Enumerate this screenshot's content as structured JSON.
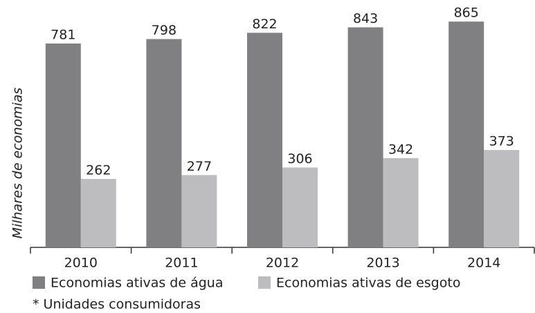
{
  "chart_data": {
    "type": "bar",
    "y_label": "Milhares de economias",
    "note": "* Unidades consumidoras",
    "categories": [
      "2010",
      "2011",
      "2012",
      "2013",
      "2014"
    ],
    "series": [
      {
        "name": "Economias ativas de água",
        "color": "#808083",
        "values": [
          781,
          798,
          822,
          843,
          865
        ]
      },
      {
        "name": "Economias ativas de esgoto",
        "color": "#bdbdbf",
        "values": [
          262,
          277,
          306,
          342,
          373
        ]
      }
    ],
    "ylim": [
      0,
      900
    ]
  }
}
